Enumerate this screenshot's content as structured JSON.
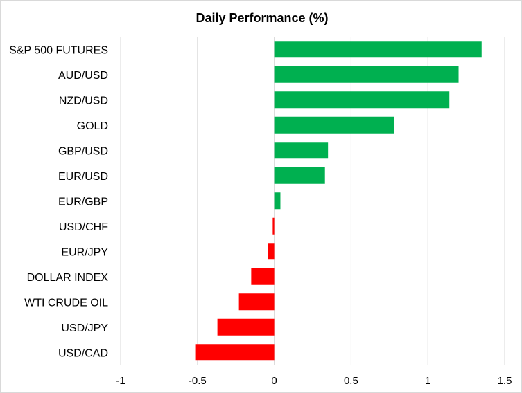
{
  "chart_data": {
    "type": "bar",
    "orientation": "horizontal",
    "title": "Daily Performance (%)",
    "xlabel": "",
    "ylabel": "",
    "categories": [
      "S&P 500 FUTURES",
      "AUD/USD",
      "NZD/USD",
      "GOLD",
      "GBP/USD",
      "EUR/USD",
      "EUR/GBP",
      "USD/CHF",
      "EUR/JPY",
      "DOLLAR INDEX",
      "WTI CRUDE OIL",
      "USD/JPY",
      "USD/CAD"
    ],
    "values": [
      1.35,
      1.2,
      1.14,
      0.78,
      0.35,
      0.33,
      0.04,
      -0.01,
      -0.04,
      -0.15,
      -0.23,
      -0.37,
      -0.51
    ],
    "xlim": [
      -1,
      1.5
    ],
    "xticks": [
      -1,
      -0.5,
      0,
      0.5,
      1,
      1.5
    ],
    "xtick_labels": [
      "-1",
      "-0.5",
      "0",
      "0.5",
      "1",
      "1.5"
    ],
    "grid": "vertical",
    "legend": "none",
    "colors": {
      "positive": "#00B050",
      "negative": "#FF0000",
      "grid": "#d9d9d9",
      "text": "#000000"
    }
  }
}
